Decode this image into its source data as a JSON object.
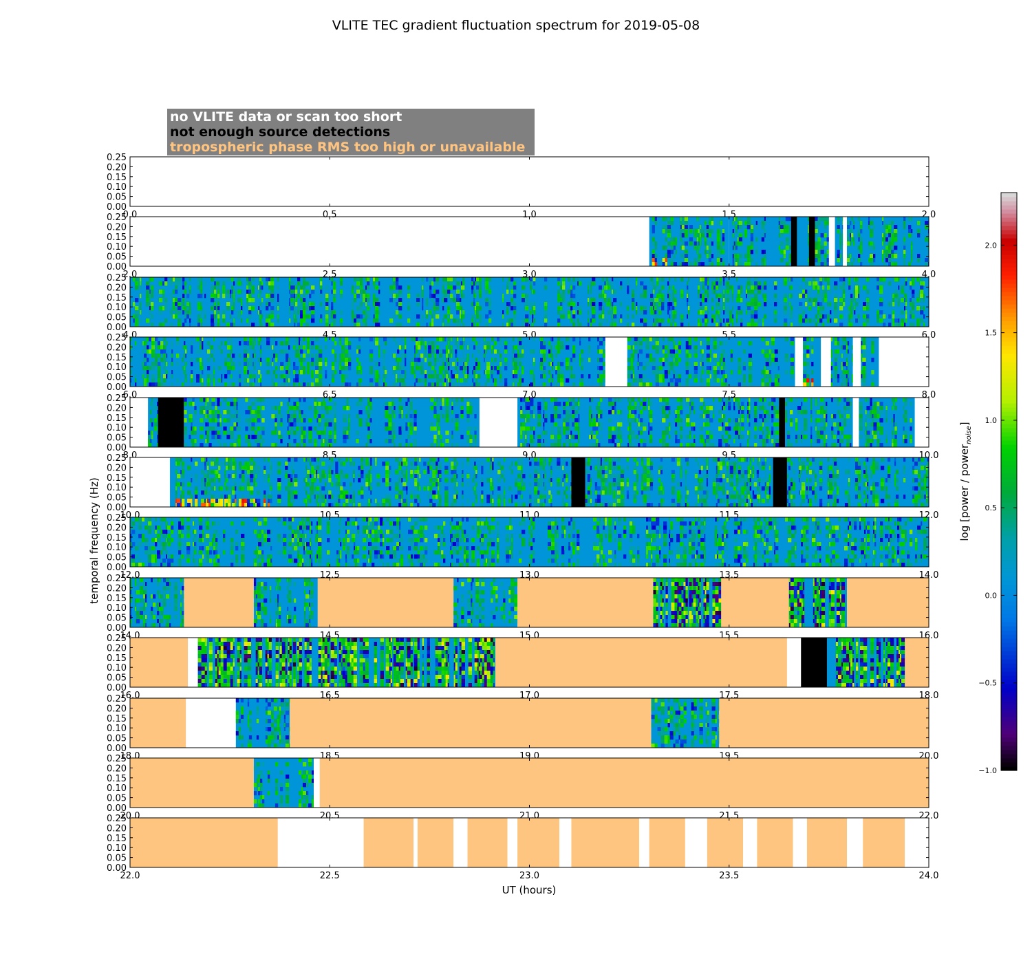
{
  "chart_data": {
    "type": "heatmap",
    "title": "VLITE TEC gradient fluctuation spectrum for 2019-05-08",
    "xlabel": "UT (hours)",
    "ylabel": "temporal frequency (Hz)",
    "y_ticks": [
      "0.00",
      "0.05",
      "0.10",
      "0.15",
      "0.20",
      "0.25"
    ],
    "ylim": [
      0,
      0.25
    ],
    "legend": [
      {
        "label": "no VLITE data or scan too short",
        "text_color": "#ffffff"
      },
      {
        "label": "not enough source detections",
        "text_color": "#000000"
      },
      {
        "label": "tropospheric phase RMS too high or unavailable",
        "text_color": "#ffc580"
      }
    ],
    "colorbar": {
      "label": "log [power / power",
      "label_sub": "noise",
      "label_end": "]",
      "range": [
        -1.0,
        2.3
      ],
      "ticks": [
        {
          "v": -1.0,
          "t": "−1.0"
        },
        {
          "v": -0.5,
          "t": "−0.5"
        },
        {
          "v": 0.0,
          "t": "0.0"
        },
        {
          "v": 0.5,
          "t": "0.5"
        },
        {
          "v": 1.0,
          "t": "1.0"
        },
        {
          "v": 1.5,
          "t": "1.5"
        },
        {
          "v": 2.0,
          "t": "2.0"
        }
      ]
    },
    "colors": {
      "no_data": "#ffffff",
      "no_detections": "#000000",
      "tropo": "#fdc57f",
      "baseline": "#0095d8"
    },
    "panels": [
      {
        "x_range": [
          0.0,
          2.0
        ],
        "ticks": [
          "0.0",
          "0.5",
          "1.0",
          "1.5",
          "2.0"
        ],
        "segments": []
      },
      {
        "x_range": [
          2.0,
          4.0
        ],
        "ticks": [
          "2.0",
          "2.5",
          "3.0",
          "3.5",
          "4.0"
        ],
        "segments": [
          {
            "s": 3.3,
            "e": 3.345,
            "k": "hot"
          },
          {
            "s": 3.345,
            "e": 3.5,
            "k": "sp"
          },
          {
            "s": 3.5,
            "e": 3.655,
            "k": "sp"
          },
          {
            "s": 3.655,
            "e": 3.67,
            "k": "nd"
          },
          {
            "s": 3.67,
            "e": 3.7,
            "k": "sp"
          },
          {
            "s": 3.7,
            "e": 3.715,
            "k": "nd"
          },
          {
            "s": 3.715,
            "e": 3.75,
            "k": "sp"
          },
          {
            "s": 3.75,
            "e": 3.765,
            "k": "no"
          },
          {
            "s": 3.765,
            "e": 3.785,
            "k": "sp"
          },
          {
            "s": 3.785,
            "e": 3.795,
            "k": "no"
          },
          {
            "s": 3.795,
            "e": 4.0,
            "k": "sp"
          }
        ]
      },
      {
        "x_range": [
          4.0,
          6.0
        ],
        "ticks": [
          "4.0",
          "4.5",
          "5.0",
          "5.5",
          "6.0"
        ],
        "segments": [
          {
            "s": 4.0,
            "e": 6.0,
            "k": "sp"
          }
        ]
      },
      {
        "x_range": [
          6.0,
          8.0
        ],
        "ticks": [
          "6.0",
          "6.5",
          "7.0",
          "7.5",
          "8.0"
        ],
        "segments": [
          {
            "s": 6.0,
            "e": 7.19,
            "k": "sp"
          },
          {
            "s": 7.19,
            "e": 7.245,
            "k": "no"
          },
          {
            "s": 7.245,
            "e": 7.665,
            "k": "sp"
          },
          {
            "s": 7.665,
            "e": 7.685,
            "k": "no"
          },
          {
            "s": 7.685,
            "e": 7.73,
            "k": "hot"
          },
          {
            "s": 7.73,
            "e": 7.755,
            "k": "no"
          },
          {
            "s": 7.755,
            "e": 7.81,
            "k": "sp"
          },
          {
            "s": 7.81,
            "e": 7.83,
            "k": "no"
          },
          {
            "s": 7.83,
            "e": 7.875,
            "k": "sp"
          },
          {
            "s": 7.875,
            "e": 8.0,
            "k": "no"
          }
        ]
      },
      {
        "x_range": [
          8.0,
          10.0
        ],
        "ticks": [
          "8.0",
          "8.5",
          "9.0",
          "9.5",
          "10.0"
        ],
        "segments": [
          {
            "s": 8.0,
            "e": 8.045,
            "k": "no"
          },
          {
            "s": 8.045,
            "e": 8.07,
            "k": "sp"
          },
          {
            "s": 8.07,
            "e": 8.135,
            "k": "nd"
          },
          {
            "s": 8.135,
            "e": 8.875,
            "k": "sp"
          },
          {
            "s": 8.875,
            "e": 8.97,
            "k": "no"
          },
          {
            "s": 8.97,
            "e": 9.625,
            "k": "sp"
          },
          {
            "s": 9.625,
            "e": 9.64,
            "k": "nd"
          },
          {
            "s": 9.64,
            "e": 9.81,
            "k": "sp"
          },
          {
            "s": 9.81,
            "e": 9.825,
            "k": "no"
          },
          {
            "s": 9.825,
            "e": 9.965,
            "k": "sp"
          },
          {
            "s": 9.965,
            "e": 10.0,
            "k": "no"
          }
        ]
      },
      {
        "x_range": [
          10.0,
          12.0
        ],
        "ticks": [
          "10.0",
          "10.5",
          "11.0",
          "11.5",
          "12.0"
        ],
        "segments": [
          {
            "s": 10.0,
            "e": 10.1,
            "k": "no"
          },
          {
            "s": 10.1,
            "e": 10.35,
            "k": "hot"
          },
          {
            "s": 10.35,
            "e": 11.105,
            "k": "sp"
          },
          {
            "s": 11.105,
            "e": 11.14,
            "k": "nd"
          },
          {
            "s": 11.14,
            "e": 11.61,
            "k": "sp"
          },
          {
            "s": 11.61,
            "e": 11.645,
            "k": "nd"
          },
          {
            "s": 11.645,
            "e": 12.0,
            "k": "sp"
          }
        ]
      },
      {
        "x_range": [
          12.0,
          14.0
        ],
        "ticks": [
          "12.0",
          "12.5",
          "13.0",
          "13.5",
          "14.0"
        ],
        "segments": [
          {
            "s": 12.0,
            "e": 14.0,
            "k": "sp"
          }
        ]
      },
      {
        "x_range": [
          14.0,
          16.0
        ],
        "ticks": [
          "14.0",
          "14.5",
          "15.0",
          "15.5",
          "16.0"
        ],
        "segments": [
          {
            "s": 14.0,
            "e": 14.135,
            "k": "sp"
          },
          {
            "s": 14.135,
            "e": 14.31,
            "k": "tr"
          },
          {
            "s": 14.31,
            "e": 14.47,
            "k": "sp"
          },
          {
            "s": 14.47,
            "e": 14.81,
            "k": "tr"
          },
          {
            "s": 14.81,
            "e": 14.97,
            "k": "sp"
          },
          {
            "s": 14.97,
            "e": 15.31,
            "k": "tr"
          },
          {
            "s": 15.31,
            "e": 15.48,
            "k": "spx"
          },
          {
            "s": 15.48,
            "e": 15.65,
            "k": "tr"
          },
          {
            "s": 15.65,
            "e": 15.795,
            "k": "spx"
          },
          {
            "s": 15.795,
            "e": 16.0,
            "k": "tr"
          }
        ]
      },
      {
        "x_range": [
          16.0,
          18.0
        ],
        "ticks": [
          "16.0",
          "16.5",
          "17.0",
          "17.5",
          "18.0"
        ],
        "segments": [
          {
            "s": 16.0,
            "e": 16.145,
            "k": "tr"
          },
          {
            "s": 16.145,
            "e": 16.17,
            "k": "no"
          },
          {
            "s": 16.17,
            "e": 16.915,
            "k": "spx"
          },
          {
            "s": 16.915,
            "e": 17.645,
            "k": "tr"
          },
          {
            "s": 17.645,
            "e": 17.68,
            "k": "no"
          },
          {
            "s": 17.68,
            "e": 17.745,
            "k": "nd"
          },
          {
            "s": 17.745,
            "e": 17.94,
            "k": "spx"
          },
          {
            "s": 17.94,
            "e": 18.0,
            "k": "tr"
          }
        ]
      },
      {
        "x_range": [
          18.0,
          20.0
        ],
        "ticks": [
          "18.0",
          "18.5",
          "19.0",
          "19.5",
          "20.0"
        ],
        "segments": [
          {
            "s": 18.0,
            "e": 18.14,
            "k": "tr"
          },
          {
            "s": 18.14,
            "e": 18.265,
            "k": "no"
          },
          {
            "s": 18.265,
            "e": 18.4,
            "k": "sp"
          },
          {
            "s": 18.4,
            "e": 19.305,
            "k": "tr"
          },
          {
            "s": 19.305,
            "e": 19.475,
            "k": "sp"
          },
          {
            "s": 19.475,
            "e": 20.0,
            "k": "tr"
          }
        ]
      },
      {
        "x_range": [
          20.0,
          22.0
        ],
        "ticks": [
          "20.0",
          "20.5",
          "21.0",
          "21.5",
          "22.0"
        ],
        "segments": [
          {
            "s": 20.0,
            "e": 20.31,
            "k": "tr"
          },
          {
            "s": 20.31,
            "e": 20.46,
            "k": "sp"
          },
          {
            "s": 20.46,
            "e": 20.475,
            "k": "no"
          },
          {
            "s": 20.475,
            "e": 22.0,
            "k": "tr"
          }
        ]
      },
      {
        "x_range": [
          22.0,
          24.0
        ],
        "ticks": [
          "22.0",
          "22.5",
          "23.0",
          "23.5",
          "24.0"
        ],
        "segments": [
          {
            "s": 22.0,
            "e": 22.37,
            "k": "tr"
          },
          {
            "s": 22.37,
            "e": 22.585,
            "k": "no"
          },
          {
            "s": 22.585,
            "e": 22.71,
            "k": "tr"
          },
          {
            "s": 22.71,
            "e": 22.72,
            "k": "no"
          },
          {
            "s": 22.72,
            "e": 22.81,
            "k": "tr"
          },
          {
            "s": 22.81,
            "e": 22.845,
            "k": "no"
          },
          {
            "s": 22.845,
            "e": 22.945,
            "k": "tr"
          },
          {
            "s": 22.945,
            "e": 22.97,
            "k": "no"
          },
          {
            "s": 22.97,
            "e": 23.075,
            "k": "tr"
          },
          {
            "s": 23.075,
            "e": 23.105,
            "k": "no"
          },
          {
            "s": 23.105,
            "e": 23.275,
            "k": "tr"
          },
          {
            "s": 23.275,
            "e": 23.3,
            "k": "no"
          },
          {
            "s": 23.3,
            "e": 23.39,
            "k": "tr"
          },
          {
            "s": 23.39,
            "e": 23.445,
            "k": "no"
          },
          {
            "s": 23.445,
            "e": 23.535,
            "k": "tr"
          },
          {
            "s": 23.535,
            "e": 23.57,
            "k": "no"
          },
          {
            "s": 23.57,
            "e": 23.66,
            "k": "tr"
          },
          {
            "s": 23.66,
            "e": 23.695,
            "k": "no"
          },
          {
            "s": 23.695,
            "e": 23.795,
            "k": "tr"
          },
          {
            "s": 23.795,
            "e": 23.835,
            "k": "no"
          },
          {
            "s": 23.835,
            "e": 23.94,
            "k": "tr"
          },
          {
            "s": 23.94,
            "e": 24.0,
            "k": "no"
          }
        ]
      }
    ]
  }
}
